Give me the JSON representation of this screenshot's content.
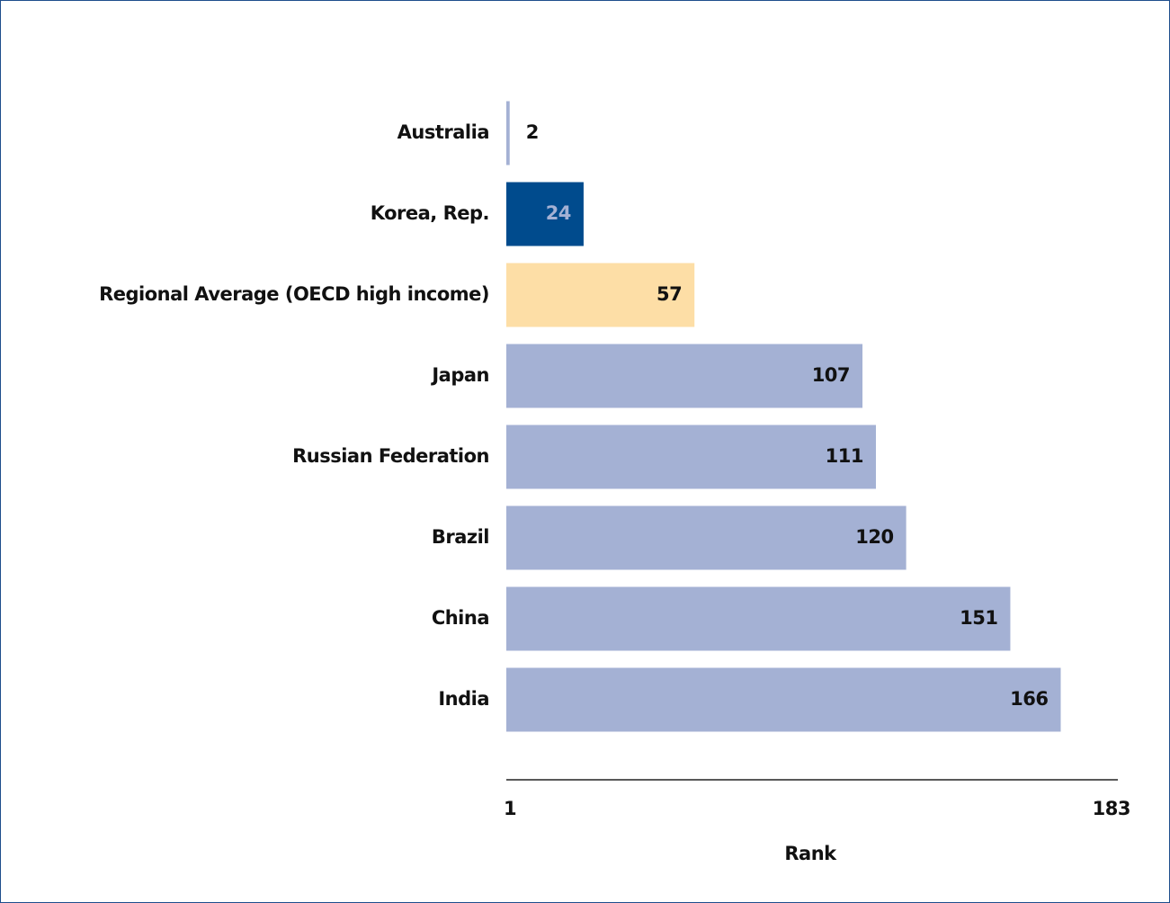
{
  "chart_data": {
    "type": "bar",
    "orientation": "horizontal",
    "categories": [
      "Australia",
      "Korea, Rep.",
      "Regional Average (OECD high income)",
      "Japan",
      "Russian Federation",
      "Brazil",
      "China",
      "India"
    ],
    "values": [
      2,
      24,
      57,
      107,
      111,
      120,
      151,
      166
    ],
    "colors": [
      "#a4b1d4",
      "#004b8d",
      "#fddea6",
      "#a4b1d4",
      "#a4b1d4",
      "#a4b1d4",
      "#a4b1d4",
      "#a4b1d4"
    ],
    "xlim": [
      1,
      183
    ],
    "xticks": [
      1,
      183
    ],
    "xlabel": "Rank"
  }
}
